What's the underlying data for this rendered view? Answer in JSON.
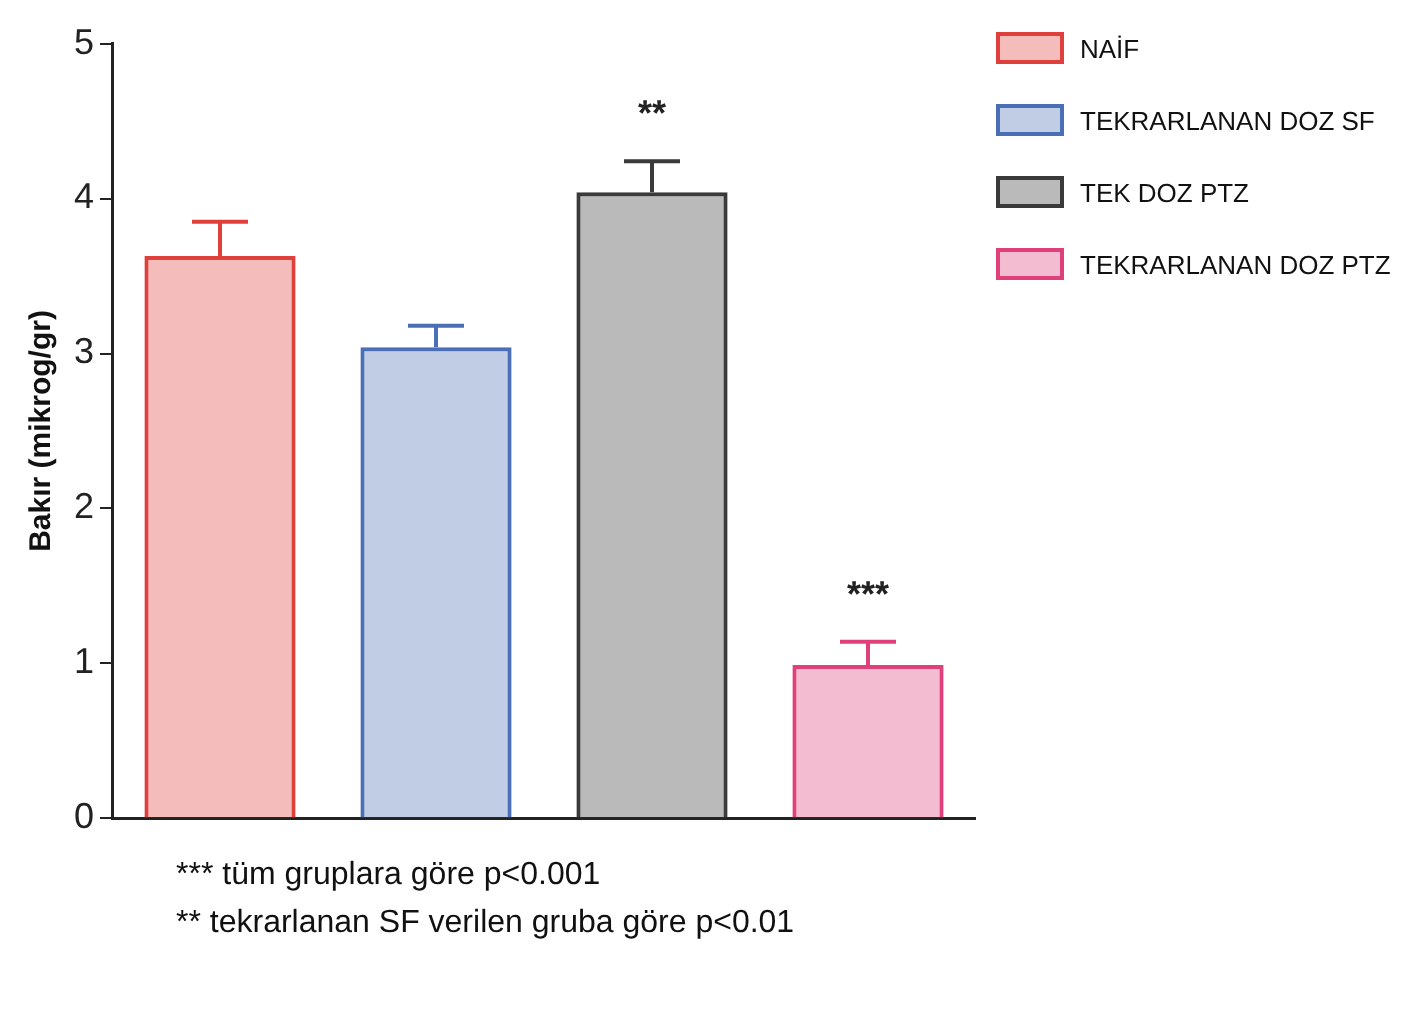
{
  "chart_data": {
    "type": "bar",
    "ylabel": "Bakır (mikrog/gr)",
    "categories": [
      null,
      null,
      null,
      null
    ],
    "series": [
      {
        "name": "NAİF",
        "color": "#e0403c",
        "values": [
          3.63,
          null,
          null,
          null
        ],
        "errors": [
          [
            3.63,
            3.85
          ],
          null,
          null,
          null
        ]
      },
      {
        "name": "TEKRARLANAN DOZ SF",
        "color": "#4a6fb5",
        "values": [
          null,
          3.04,
          null,
          null
        ],
        "errors": [
          null,
          [
            3.04,
            3.18
          ],
          null,
          null
        ]
      },
      {
        "name": "TEK DOZ PTZ",
        "color": "#3a3a3a",
        "values": [
          null,
          null,
          4.04,
          null
        ],
        "errors": [
          null,
          null,
          [
            4.04,
            4.24
          ],
          null
        ]
      },
      {
        "name": "TEKRARLANAN DOZ PTZ",
        "color": "#e0407a",
        "values": [
          null,
          null,
          null,
          0.99
        ],
        "errors": [
          null,
          null,
          null,
          [
            0.99,
            1.14
          ]
        ]
      }
    ],
    "ylim": [
      0,
      5
    ],
    "yticks": [
      0,
      1,
      2,
      3,
      4,
      5
    ],
    "grid": false,
    "legend": "top right",
    "annotations": [
      "**",
      "***",
      "*** tüm gruplara göre p<0.001",
      "** tekrarlanan SF verilen gruba göre p<0.01"
    ]
  }
}
